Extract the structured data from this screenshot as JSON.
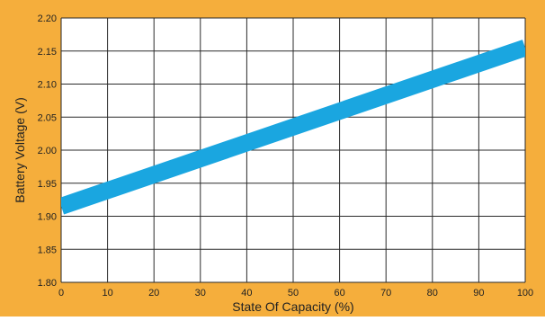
{
  "colors": {
    "frame": "#F5AE3C",
    "plot_background": "#FFFFFF",
    "grid": "#2A2A2A",
    "line": "#1AA6E0"
  },
  "chart_data": {
    "type": "line",
    "xlabel": "State Of Capacity (%)",
    "ylabel": "Battery Voltage (V)",
    "xlim": [
      0,
      100
    ],
    "ylim": [
      1.8,
      2.2
    ],
    "grid": true,
    "x_ticks": [
      0,
      10,
      20,
      30,
      40,
      50,
      60,
      70,
      80,
      90,
      100
    ],
    "y_ticks": [
      "1.80",
      "1.85",
      "1.90",
      "1.95",
      "2.00",
      "2.05",
      "2.10",
      "2.15",
      "2.20"
    ],
    "series": [
      {
        "x": [
          0,
          100
        ],
        "y": [
          1.915,
          2.155
        ]
      }
    ]
  }
}
